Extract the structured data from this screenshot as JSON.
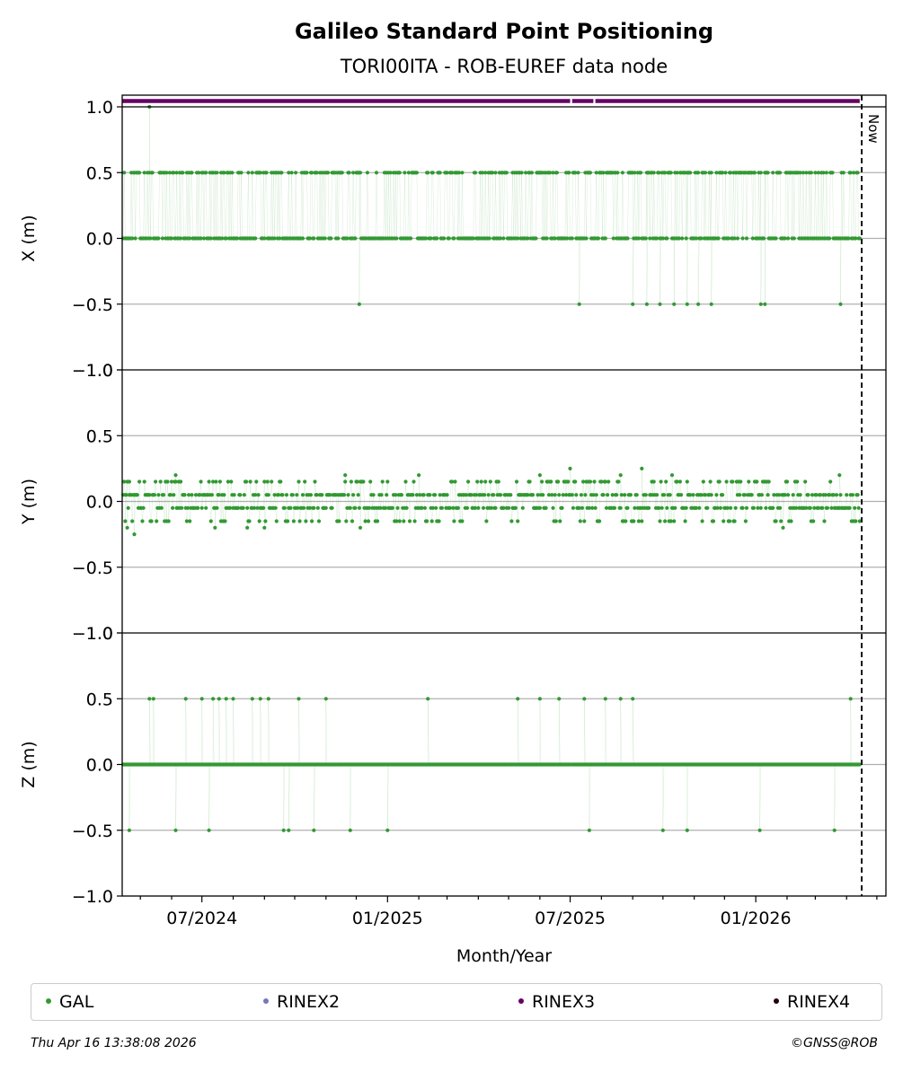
{
  "chart_data": {
    "type": "scatter",
    "title": "Galileo Standard Point Positioning",
    "subtitle": "TORI00ITA - ROB-EUREF data node",
    "xlabel": "Month/Year",
    "x_ticks": [
      "07/2024",
      "01/2025",
      "07/2025",
      "01/2026"
    ],
    "x_range": [
      "2024-04-13",
      "2026-05-10"
    ],
    "now_date": "2026-04-16",
    "now_label": "Now",
    "panels": [
      {
        "ylabel": "X (m)",
        "ylim": [
          -1.0,
          1.0
        ],
        "yticks": [
          -1.0,
          -0.5,
          0.0,
          0.5,
          1.0
        ],
        "ytick_labels": [
          "−1.0",
          "−0.5",
          "0.0",
          "0.5",
          "1.0"
        ],
        "values": [
          {
            "date": "2024-05-10",
            "y": 1.0
          },
          {
            "date": "2024-12-04",
            "y": -0.5
          },
          {
            "date": "2025-07-10",
            "y": -0.5
          },
          {
            "date": "2025-09-01",
            "y": -0.5
          },
          {
            "date": "2025-09-15",
            "y": -0.5
          },
          {
            "date": "2025-09-28",
            "y": -0.5
          },
          {
            "date": "2025-10-12",
            "y": -0.5
          },
          {
            "date": "2025-10-25",
            "y": -0.5
          },
          {
            "date": "2025-11-05",
            "y": -0.5
          },
          {
            "date": "2025-11-18",
            "y": -0.5
          },
          {
            "date": "2026-01-06",
            "y": -0.5
          },
          {
            "date": "2026-01-10",
            "y": -0.5
          },
          {
            "date": "2026-03-26",
            "y": -0.5
          }
        ]
      },
      {
        "ylabel": "Y (m)",
        "ylim": [
          -1.0,
          1.0
        ],
        "yticks": [
          -1.0,
          -0.5,
          0.0,
          0.5,
          1.0
        ],
        "ytick_labels": [
          "−1.0",
          "−0.5",
          "0.0",
          "0.5",
          "1.0"
        ],
        "values": [
          {
            "date": "2024-04-16",
            "y": -0.15
          },
          {
            "date": "2024-04-18",
            "y": -0.2
          },
          {
            "date": "2024-04-20",
            "y": 0.15
          },
          {
            "date": "2024-04-25",
            "y": -0.25
          },
          {
            "date": "2024-06-05",
            "y": 0.2
          },
          {
            "date": "2024-07-14",
            "y": -0.2
          },
          {
            "date": "2024-08-15",
            "y": -0.2
          },
          {
            "date": "2024-09-01",
            "y": -0.2
          },
          {
            "date": "2024-11-20",
            "y": 0.2
          },
          {
            "date": "2024-12-05",
            "y": -0.2
          },
          {
            "date": "2025-02-01",
            "y": 0.2
          },
          {
            "date": "2025-06-01",
            "y": 0.2
          },
          {
            "date": "2025-07-01",
            "y": 0.25
          },
          {
            "date": "2025-08-20",
            "y": 0.2
          },
          {
            "date": "2025-09-10",
            "y": 0.25
          },
          {
            "date": "2025-10-10",
            "y": 0.2
          },
          {
            "date": "2026-01-28",
            "y": -0.2
          },
          {
            "date": "2026-03-25",
            "y": 0.2
          }
        ]
      },
      {
        "ylabel": "Z (m)",
        "ylim": [
          -1.0,
          1.0
        ],
        "yticks": [
          -1.0,
          -0.5,
          0.0,
          0.5,
          1.0
        ],
        "ytick_labels": [
          "−1.0",
          "−0.5",
          "0.0",
          "0.5",
          "1.0"
        ],
        "values": [
          {
            "date": "2024-04-20",
            "y": -0.5
          },
          {
            "date": "2024-05-10",
            "y": 0.5
          },
          {
            "date": "2024-05-14",
            "y": 0.5
          },
          {
            "date": "2024-06-05",
            "y": -0.5
          },
          {
            "date": "2024-06-15",
            "y": 0.5
          },
          {
            "date": "2024-07-01",
            "y": 0.5
          },
          {
            "date": "2024-07-08",
            "y": -0.5
          },
          {
            "date": "2024-07-12",
            "y": 0.5
          },
          {
            "date": "2024-07-18",
            "y": 0.5
          },
          {
            "date": "2024-07-25",
            "y": 0.5
          },
          {
            "date": "2024-08-01",
            "y": 0.5
          },
          {
            "date": "2024-08-20",
            "y": 0.5
          },
          {
            "date": "2024-08-28",
            "y": 0.5
          },
          {
            "date": "2024-09-05",
            "y": 0.5
          },
          {
            "date": "2024-09-20",
            "y": -0.5
          },
          {
            "date": "2024-09-25",
            "y": -0.5
          },
          {
            "date": "2024-10-05",
            "y": 0.5
          },
          {
            "date": "2024-10-20",
            "y": -0.5
          },
          {
            "date": "2024-11-01",
            "y": 0.5
          },
          {
            "date": "2024-11-25",
            "y": -0.5
          },
          {
            "date": "2025-01-01",
            "y": -0.5
          },
          {
            "date": "2025-02-10",
            "y": 0.5
          },
          {
            "date": "2025-05-10",
            "y": 0.5
          },
          {
            "date": "2025-06-01",
            "y": 0.5
          },
          {
            "date": "2025-06-20",
            "y": 0.5
          },
          {
            "date": "2025-07-15",
            "y": 0.5
          },
          {
            "date": "2025-07-20",
            "y": -0.5
          },
          {
            "date": "2025-08-05",
            "y": 0.5
          },
          {
            "date": "2025-08-20",
            "y": 0.5
          },
          {
            "date": "2025-09-01",
            "y": 0.5
          },
          {
            "date": "2025-10-01",
            "y": -0.5
          },
          {
            "date": "2025-10-25",
            "y": -0.5
          },
          {
            "date": "2026-01-05",
            "y": -0.5
          },
          {
            "date": "2026-03-20",
            "y": -0.5
          },
          {
            "date": "2026-04-05",
            "y": 0.5
          }
        ]
      }
    ],
    "series": [
      {
        "name": "GAL",
        "color": "#339933"
      },
      {
        "name": "RINEX2",
        "color": "#7777bb"
      },
      {
        "name": "RINEX3",
        "color": "#660066"
      },
      {
        "name": "RINEX4",
        "color": "#220011"
      }
    ],
    "rinex3_coverage": [
      [
        "2024-04-13",
        "2025-07-01"
      ],
      [
        "2025-07-03",
        "2025-07-24"
      ],
      [
        "2025-07-26",
        "2026-04-14"
      ]
    ],
    "grid": true,
    "legend_placement": "bottom"
  },
  "footer": {
    "timestamp": "Thu Apr 16 13:38:08 2026",
    "copyright": "©GNSS@ROB"
  }
}
